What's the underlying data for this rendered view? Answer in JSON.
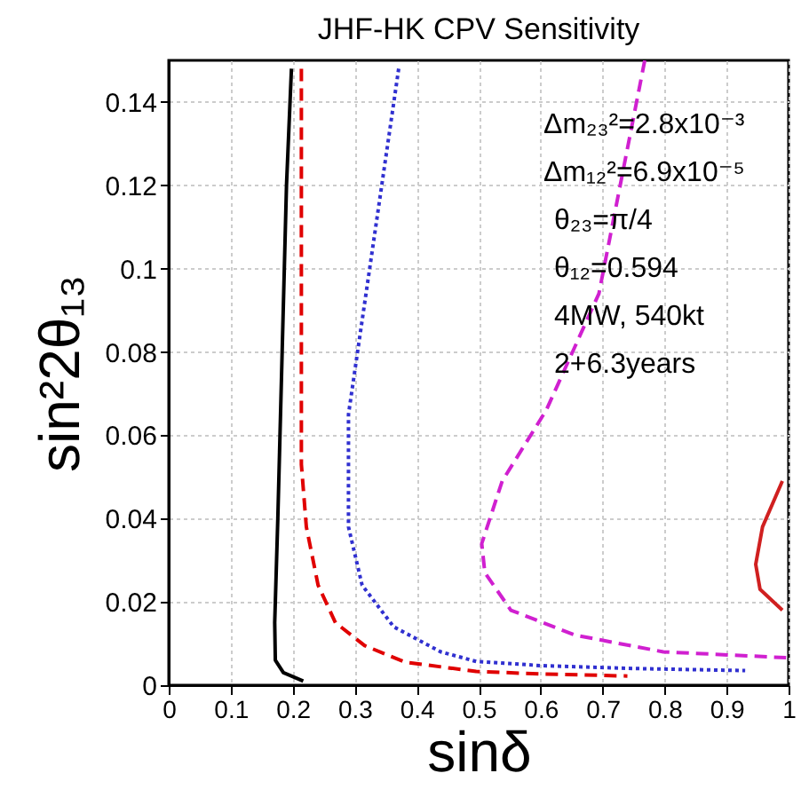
{
  "chart_data": {
    "type": "line",
    "title": "JHF-HK CPV Sensitivity",
    "xlabel": "sinδ",
    "ylabel": "sin²2θ₁₃",
    "annotations": [
      "Δm₂₃²=2.8x10⁻³",
      "Δm₁₂²=6.9x10⁻⁵",
      "θ₂₃=π/4",
      "θ₁₂=0.594",
      "4MW, 540kt",
      "2+6.3years"
    ],
    "xlim": [
      0,
      1
    ],
    "ylim": [
      0,
      0.15
    ],
    "xticks": [
      0,
      0.1,
      0.2,
      0.3,
      0.4,
      0.5,
      0.6,
      0.7,
      0.8,
      0.9,
      1
    ],
    "yticks": [
      0,
      0.02,
      0.04,
      0.06,
      0.08,
      0.1,
      0.12,
      0.14
    ],
    "grid": true,
    "series": [
      {
        "color": "#000000",
        "line_style": "solid",
        "x": [
          0.198,
          0.19,
          0.183,
          0.176,
          0.171,
          0.172,
          0.185,
          0.217
        ],
        "values": [
          0.148,
          0.12,
          0.08,
          0.04,
          0.015,
          0.006,
          0.003,
          0.001
        ]
      },
      {
        "color": "#e00000",
        "line_style": "dashed",
        "x": [
          0.214,
          0.214,
          0.222,
          0.241,
          0.269,
          0.316,
          0.382,
          0.496,
          0.6,
          0.74
        ],
        "values": [
          0.148,
          0.053,
          0.038,
          0.024,
          0.015,
          0.0095,
          0.0055,
          0.0033,
          0.0027,
          0.0022
        ]
      },
      {
        "color": "#3030d0",
        "line_style": "dotted",
        "x": [
          0.371,
          0.29,
          0.29,
          0.312,
          0.363,
          0.439,
          0.496,
          0.6,
          0.75,
          0.93
        ],
        "values": [
          0.148,
          0.065,
          0.038,
          0.024,
          0.014,
          0.008,
          0.0057,
          0.0047,
          0.004,
          0.0035
        ]
      },
      {
        "color": "#d020d0",
        "line_style": "dashed",
        "x": [
          0.768,
          0.694,
          0.609,
          0.538,
          0.505,
          0.51,
          0.552,
          0.656,
          0.798,
          0.996
        ],
        "values": [
          0.15,
          0.094,
          0.066,
          0.049,
          0.034,
          0.027,
          0.018,
          0.012,
          0.008,
          0.0066
        ]
      },
      {
        "color": "#d02020",
        "line_style": "solid",
        "x": [
          0.99,
          0.958,
          0.947,
          0.954,
          0.99
        ],
        "values": [
          0.049,
          0.038,
          0.029,
          0.023,
          0.018
        ]
      }
    ]
  }
}
